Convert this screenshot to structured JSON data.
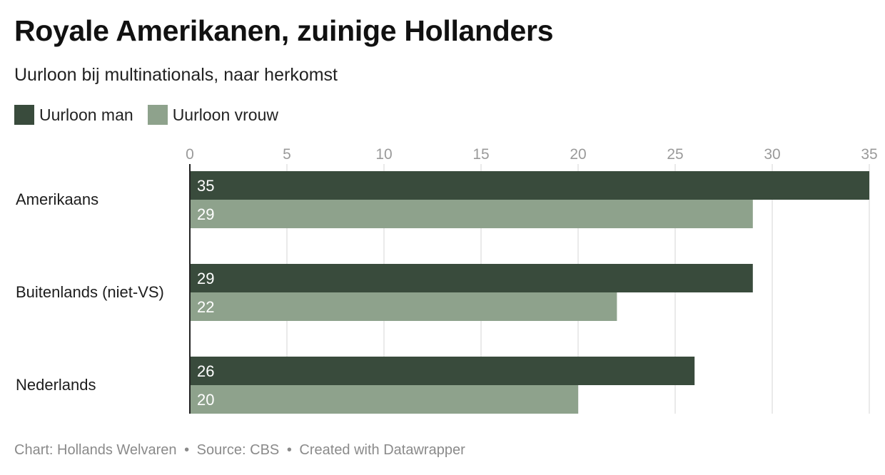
{
  "header": {
    "title": "Royale Amerikanen, zuinige Hollanders",
    "subtitle": "Uurloon bij multinationals, naar herkomst"
  },
  "legend": [
    {
      "label": "Uurloon man",
      "color": "#394b3c"
    },
    {
      "label": "Uurloon vrouw",
      "color": "#8ea28c"
    }
  ],
  "chart_data": {
    "type": "bar",
    "orientation": "horizontal",
    "title": "Royale Amerikanen, zuinige Hollanders",
    "subtitle": "Uurloon bij multinationals, naar herkomst",
    "categories": [
      "Amerikaans",
      "Buitenlands (niet-VS)",
      "Nederlands"
    ],
    "series": [
      {
        "name": "Uurloon man",
        "color": "#394b3c",
        "values": [
          35,
          29,
          26
        ]
      },
      {
        "name": "Uurloon vrouw",
        "color": "#8ea28c",
        "values": [
          29,
          22,
          20
        ]
      }
    ],
    "xticks": [
      0,
      5,
      10,
      15,
      20,
      25,
      30,
      35
    ],
    "xlim": [
      0,
      35
    ],
    "xlabel": "",
    "ylabel": "",
    "grid": true,
    "legend_position": "top-left"
  },
  "footer": {
    "chart_credit": "Chart: Hollands Welvaren",
    "source": "Source: CBS",
    "created_with": "Created with Datawrapper",
    "separator": "•"
  }
}
